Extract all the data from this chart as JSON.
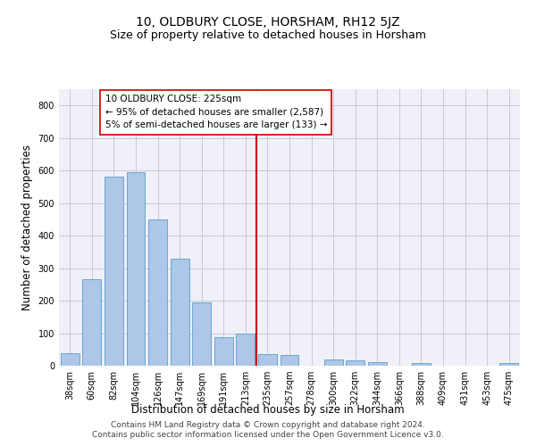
{
  "title": "10, OLDBURY CLOSE, HORSHAM, RH12 5JZ",
  "subtitle": "Size of property relative to detached houses in Horsham",
  "xlabel": "Distribution of detached houses by size in Horsham",
  "ylabel": "Number of detached properties",
  "footer_line1": "Contains HM Land Registry data © Crown copyright and database right 2024.",
  "footer_line2": "Contains public sector information licensed under the Open Government Licence v3.0.",
  "categories": [
    "38sqm",
    "60sqm",
    "82sqm",
    "104sqm",
    "126sqm",
    "147sqm",
    "169sqm",
    "191sqm",
    "213sqm",
    "235sqm",
    "257sqm",
    "278sqm",
    "300sqm",
    "322sqm",
    "344sqm",
    "366sqm",
    "388sqm",
    "409sqm",
    "431sqm",
    "453sqm",
    "475sqm"
  ],
  "values": [
    38,
    265,
    580,
    595,
    450,
    330,
    195,
    88,
    100,
    37,
    33,
    0,
    18,
    17,
    12,
    0,
    7,
    0,
    0,
    0,
    8
  ],
  "bar_color": "#aec6e8",
  "bar_edge_color": "#5a9fc8",
  "vline_color": "#cc0000",
  "annotation_text": "10 OLDBURY CLOSE: 225sqm\n← 95% of detached houses are smaller (2,587)\n5% of semi-detached houses are larger (133) →",
  "annotation_box_color": "#ffffff",
  "annotation_box_edge_color": "#cc0000",
  "ylim": [
    0,
    850
  ],
  "yticks": [
    0,
    100,
    200,
    300,
    400,
    500,
    600,
    700,
    800
  ],
  "bg_color": "#f0f0f8",
  "grid_color": "#c8c8d8",
  "title_fontsize": 10,
  "subtitle_fontsize": 9,
  "axis_label_fontsize": 8.5,
  "tick_fontsize": 7,
  "footer_fontsize": 6.5,
  "annotation_fontsize": 7.5
}
